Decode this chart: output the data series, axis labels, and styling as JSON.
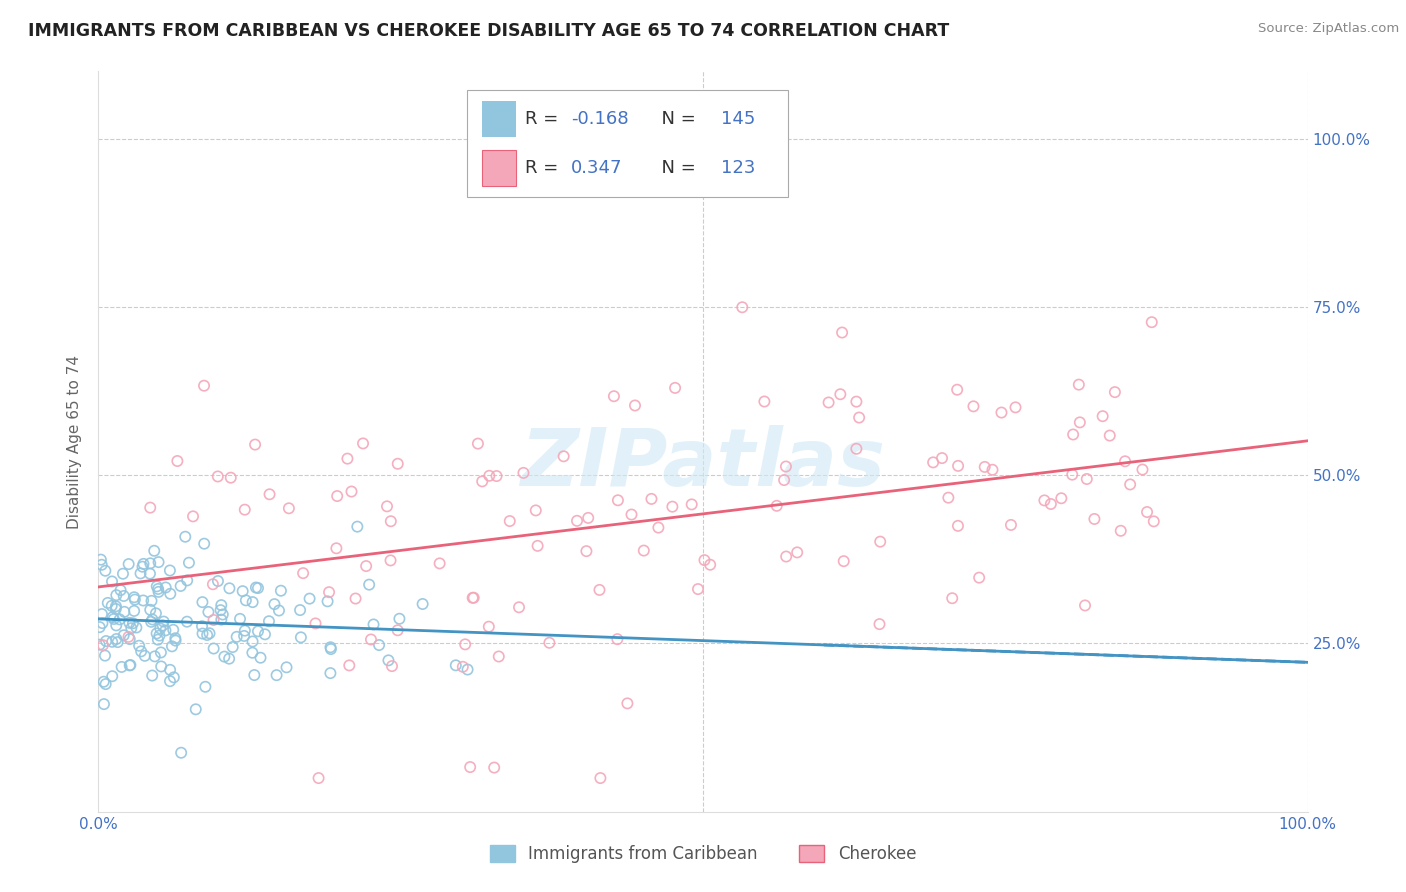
{
  "title": "IMMIGRANTS FROM CARIBBEAN VS CHEROKEE DISABILITY AGE 65 TO 74 CORRELATION CHART",
  "source": "Source: ZipAtlas.com",
  "ylabel": "Disability Age 65 to 74",
  "xmin": 0.0,
  "xmax": 1.0,
  "ymin": 0.0,
  "ymax": 1.1,
  "x_tick_labels": [
    "0.0%",
    "100.0%"
  ],
  "y_tick_labels": [
    "25.0%",
    "50.0%",
    "75.0%",
    "100.0%"
  ],
  "y_tick_positions": [
    0.25,
    0.5,
    0.75,
    1.0
  ],
  "series1_name": "Immigrants from Caribbean",
  "series1_color": "#92c5de",
  "series1_R": "-0.168",
  "series1_N": "145",
  "series1_line_color": "#4393c3",
  "series2_name": "Cherokee",
  "series2_color": "#f4a7b9",
  "series2_R": "0.347",
  "series2_N": "123",
  "series2_line_color": "#e8637a",
  "watermark_text": "ZIPatlas",
  "background_color": "#ffffff",
  "grid_color": "#cccccc",
  "title_fontsize": 12.5,
  "legend_text_color": "#4472c4",
  "tick_label_color": "#4472c4",
  "ylabel_color": "#666666"
}
